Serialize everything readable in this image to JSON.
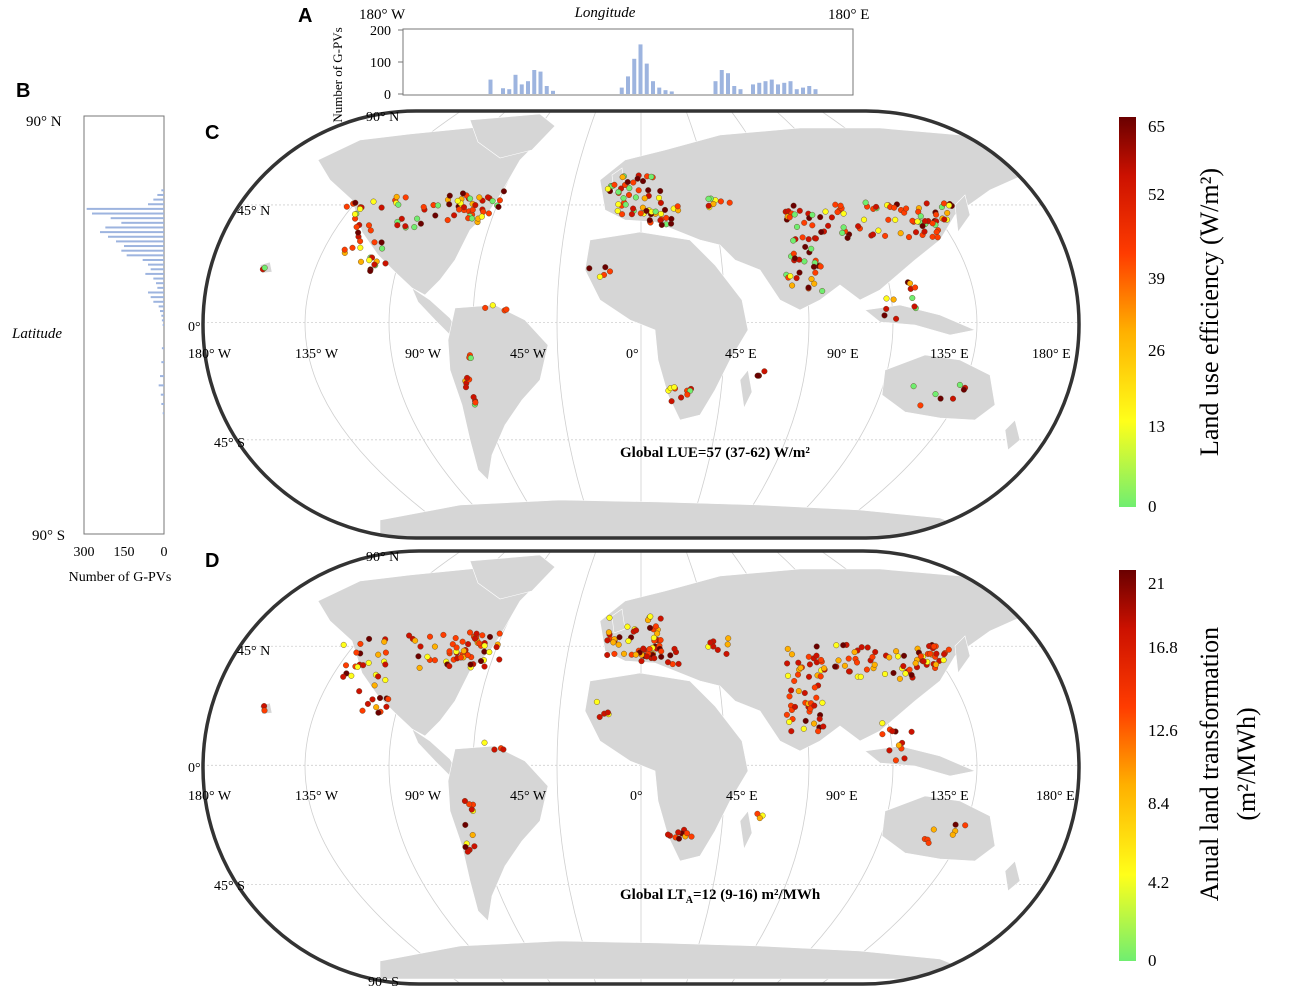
{
  "panels": {
    "a": {
      "letter": "A",
      "left_label": "180° W",
      "title": "Longitude",
      "right_label": "180° E",
      "ylabel": "Number of G-PVs",
      "yticks": [
        "200",
        "100",
        "0"
      ]
    },
    "b": {
      "letter": "B",
      "top_label": "90° N",
      "ylabel": "Latitude",
      "bottom_label": "90° S",
      "xticks": [
        "300",
        "150",
        "0"
      ],
      "xlabel": "Number of G-PVs"
    },
    "c": {
      "letter": "C",
      "lat_labels": [
        "90° N",
        "45° N",
        "0°",
        "45° S"
      ],
      "lon_labels": [
        "180° W",
        "135° W",
        "90° W",
        "45° W",
        "0°",
        "45° E",
        "90° E",
        "135° E",
        "180° E"
      ],
      "annotation": "Global LUE=57 (37-62) W/m²",
      "colorbar": {
        "title": "Land use efficiency (W/m²)",
        "ticks": [
          "65",
          "52",
          "39",
          "26",
          "13",
          "0"
        ]
      }
    },
    "d": {
      "letter": "D",
      "lat_labels": [
        "90° N",
        "45° N",
        "0°",
        "45° S",
        "90° S"
      ],
      "lon_labels": [
        "180° W",
        "135° W",
        "90° W",
        "45° W",
        "0°",
        "45° E",
        "90° E",
        "135° E",
        "180° E"
      ],
      "annotation_pre": "Global LT",
      "annotation_sub": "A",
      "annotation_post": "=12 (9-16) m²/MWh",
      "colorbar": {
        "title_line1": "Anual land transformation",
        "title_line2": "(m²/MWh)",
        "ticks": [
          "21",
          "16.8",
          "12.6",
          "8.4",
          "4.2",
          "0"
        ]
      }
    }
  },
  "colors": {
    "land": "#d6d6d6",
    "histogram": "#9db4df",
    "colormap": [
      "#70ee70",
      "#ffff1a",
      "#ffb000",
      "#ff3c00",
      "#cc1100",
      "#6a0000"
    ]
  },
  "chart_data": [
    {
      "type": "bar",
      "orientation": "vertical",
      "xlabel": "Longitude",
      "ylabel": "Number of G-PVs",
      "xlim": [
        -180,
        180
      ],
      "ylim": [
        0,
        200
      ],
      "x": [
        -110,
        -100,
        -95,
        -90,
        -85,
        -80,
        -75,
        -70,
        -65,
        -60,
        -5,
        0,
        5,
        10,
        15,
        20,
        25,
        30,
        35,
        70,
        75,
        80,
        85,
        90,
        100,
        105,
        110,
        115,
        120,
        125,
        130,
        135,
        140,
        145,
        150
      ],
      "values": [
        45,
        18,
        15,
        60,
        30,
        40,
        75,
        70,
        25,
        10,
        20,
        55,
        110,
        155,
        95,
        40,
        20,
        12,
        8,
        40,
        75,
        65,
        25,
        15,
        30,
        35,
        40,
        45,
        30,
        35,
        40,
        15,
        20,
        25,
        15
      ]
    },
    {
      "type": "bar",
      "orientation": "horizontal",
      "xlabel": "Number of G-PVs",
      "ylabel": "Latitude",
      "ylim": [
        -90,
        90
      ],
      "xlim": [
        300,
        0
      ],
      "y": [
        58,
        56,
        54,
        52,
        50,
        48,
        46,
        44,
        42,
        40,
        38,
        36,
        34,
        32,
        30,
        28,
        26,
        24,
        22,
        20,
        18,
        16,
        14,
        12,
        10,
        8,
        6,
        4,
        2,
        0,
        -10,
        -16,
        -22,
        -26,
        -30,
        -34,
        -38
      ],
      "values": [
        10,
        25,
        40,
        60,
        290,
        270,
        200,
        160,
        220,
        240,
        210,
        180,
        150,
        160,
        140,
        80,
        60,
        50,
        70,
        40,
        30,
        25,
        60,
        50,
        40,
        20,
        15,
        10,
        8,
        5,
        8,
        10,
        15,
        20,
        12,
        10,
        5
      ]
    }
  ]
}
